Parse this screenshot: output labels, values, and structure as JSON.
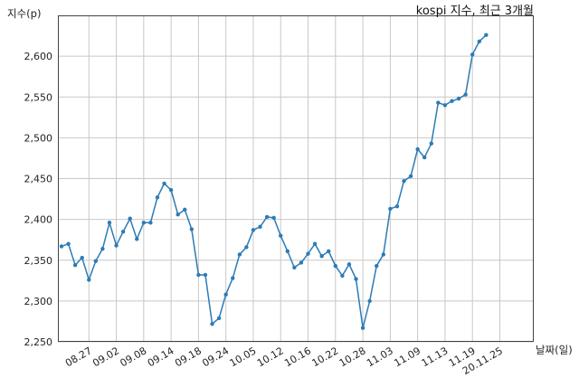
{
  "chart_data": {
    "type": "line",
    "title": "kospi 지수, 최근 3개월",
    "ylabel": "지수(p)",
    "xlabel": "날짜(일)",
    "ylim": [
      2250,
      2650
    ],
    "yticks": [
      2250,
      2300,
      2350,
      2400,
      2450,
      2500,
      2550,
      2600
    ],
    "ytick_labels": [
      "2,250",
      "2,300",
      "2,350",
      "2,400",
      "2,450",
      "2,500",
      "2,550",
      "2,600"
    ],
    "xtick_labels": [
      "08.27",
      "09.02",
      "09.08",
      "09.14",
      "09.18",
      "09.24",
      "10.05",
      "10.12",
      "10.16",
      "10.22",
      "10.28",
      "11.03",
      "11.09",
      "11.13",
      "11.19",
      "20.11.25"
    ],
    "xtick_index": [
      4,
      8,
      12,
      16,
      20,
      24,
      28,
      32,
      36,
      40,
      44,
      48,
      52,
      56,
      60,
      64
    ],
    "grid": true,
    "series": [
      {
        "values": [
          2367,
          2370,
          2344,
          2353,
          2326,
          2349,
          2364,
          2396,
          2368,
          2385,
          2401,
          2376,
          2396,
          2396,
          2427,
          2444,
          2436,
          2406,
          2412,
          2388,
          2332,
          2332,
          2272,
          2279,
          2308,
          2328,
          2357,
          2366,
          2387,
          2391,
          2403,
          2402,
          2380,
          2361,
          2341,
          2347,
          2358,
          2370,
          2355,
          2361,
          2343,
          2331,
          2345,
          2327,
          2267,
          2300,
          2343,
          2357,
          2413,
          2416,
          2447,
          2453,
          2486,
          2476,
          2493,
          2543,
          2540,
          2545,
          2548,
          2553,
          2602,
          2618,
          2626
        ]
      }
    ]
  }
}
